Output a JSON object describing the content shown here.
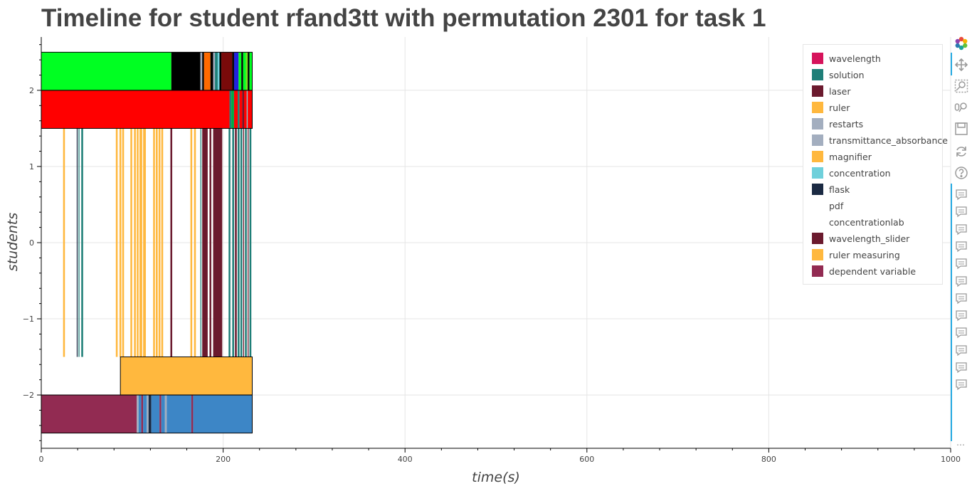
{
  "chart_data": {
    "type": "timeline",
    "title": "Timeline for student rfand3tt with permutation 2301 for task 1",
    "xlabel": "time(s)",
    "ylabel": "students",
    "xlim": [
      0,
      1000
    ],
    "ylim": [
      -2.7,
      2.7
    ],
    "x_ticks": [
      0,
      200,
      400,
      600,
      800,
      1000
    ],
    "x_tick_labels": [
      "0",
      "200",
      "400",
      "600",
      "800",
      "1000"
    ],
    "y_ticks": [
      -2,
      -1,
      0,
      1,
      2
    ],
    "y_tick_labels": [
      "−2",
      "−1",
      "0",
      "1",
      "2"
    ],
    "grid": true,
    "legend_position": "top-right",
    "legend": [
      {
        "label": "wavelength",
        "color": "#d6135b"
      },
      {
        "label": "solution",
        "color": "#1f7f78"
      },
      {
        "label": "laser",
        "color": "#6b1a2e"
      },
      {
        "label": "ruler",
        "color": "#ffb83e"
      },
      {
        "label": "restarts",
        "color": "#a3aebf"
      },
      {
        "label": "transmittance_absorbance",
        "color": "#a3aebf"
      },
      {
        "label": "magnifier",
        "color": "#ffb83e"
      },
      {
        "label": "concentration",
        "color": "#6fd0db"
      },
      {
        "label": "flask",
        "color": "#1b2a43"
      },
      {
        "label": "pdf",
        "color": "#ffffff"
      },
      {
        "label": "concentrationlab",
        "color": "#ffffff"
      },
      {
        "label": "wavelength_slider",
        "color": "#6b1a2e"
      },
      {
        "label": "ruler measuring",
        "color": "#ffb83e"
      },
      {
        "label": "dependent variable",
        "color": "#922b52"
      }
    ],
    "rows": [
      {
        "y_range": [
          2.0,
          2.5
        ],
        "segments": [
          {
            "start": 0,
            "end": 143,
            "color": "#00ff22"
          },
          {
            "start": 143,
            "end": 175,
            "color": "#000000"
          },
          {
            "start": 175,
            "end": 177,
            "color": "#a3aebf"
          },
          {
            "start": 177,
            "end": 179,
            "color": "#000000"
          },
          {
            "start": 179,
            "end": 186,
            "color": "#ff6a00"
          },
          {
            "start": 186,
            "end": 189,
            "color": "#000000"
          },
          {
            "start": 189,
            "end": 191,
            "color": "#a3aebf"
          },
          {
            "start": 191,
            "end": 194,
            "color": "#1f7f78"
          },
          {
            "start": 194,
            "end": 196,
            "color": "#6fd0db"
          },
          {
            "start": 196,
            "end": 198,
            "color": "#000000"
          },
          {
            "start": 198,
            "end": 210,
            "color": "#7a0a0a"
          },
          {
            "start": 210,
            "end": 212,
            "color": "#000000"
          },
          {
            "start": 212,
            "end": 217,
            "color": "#2222dd"
          },
          {
            "start": 217,
            "end": 220,
            "color": "#00ff22"
          },
          {
            "start": 220,
            "end": 222,
            "color": "#000000"
          },
          {
            "start": 222,
            "end": 225,
            "color": "#00ff22"
          },
          {
            "start": 225,
            "end": 227,
            "color": "#7ddc1f"
          },
          {
            "start": 227,
            "end": 229,
            "color": "#000000"
          },
          {
            "start": 229,
            "end": 232,
            "color": "#00ff22"
          }
        ]
      },
      {
        "y_range": [
          1.5,
          2.0
        ],
        "segments": [
          {
            "start": 0,
            "end": 207,
            "color": "#ff0000"
          },
          {
            "start": 207,
            "end": 209,
            "color": "#1f7f78"
          },
          {
            "start": 209,
            "end": 212,
            "color": "#00aa44"
          },
          {
            "start": 212,
            "end": 216,
            "color": "#ff0000"
          },
          {
            "start": 216,
            "end": 218,
            "color": "#1f7f78"
          },
          {
            "start": 218,
            "end": 221,
            "color": "#ff0000"
          },
          {
            "start": 221,
            "end": 223,
            "color": "#6b1a2e"
          },
          {
            "start": 223,
            "end": 226,
            "color": "#ff0000"
          },
          {
            "start": 226,
            "end": 227,
            "color": "#6fd0db"
          },
          {
            "start": 227,
            "end": 232,
            "color": "#ff0000"
          }
        ]
      },
      {
        "y_range": [
          -1.5,
          1.5
        ],
        "segments": [
          {
            "start": 24,
            "end": 26,
            "color": "#ffb83e"
          },
          {
            "start": 39,
            "end": 40,
            "color": "#1b2a43"
          },
          {
            "start": 41,
            "end": 42,
            "color": "#1f7f78"
          },
          {
            "start": 44,
            "end": 46,
            "color": "#1f7f78"
          },
          {
            "start": 82,
            "end": 84,
            "color": "#ffb83e"
          },
          {
            "start": 86,
            "end": 88,
            "color": "#ffb83e"
          },
          {
            "start": 89,
            "end": 91,
            "color": "#ffb83e"
          },
          {
            "start": 98,
            "end": 100,
            "color": "#ffb83e"
          },
          {
            "start": 102,
            "end": 104,
            "color": "#ffb83e"
          },
          {
            "start": 105,
            "end": 107,
            "color": "#ffb83e"
          },
          {
            "start": 108,
            "end": 111,
            "color": "#ffb83e"
          },
          {
            "start": 112,
            "end": 115,
            "color": "#ffb83e"
          },
          {
            "start": 123,
            "end": 125,
            "color": "#ffb83e"
          },
          {
            "start": 126,
            "end": 128,
            "color": "#ffb83e"
          },
          {
            "start": 129,
            "end": 131,
            "color": "#ffb83e"
          },
          {
            "start": 132,
            "end": 134,
            "color": "#ffb83e"
          },
          {
            "start": 142,
            "end": 144,
            "color": "#6b1a2e"
          },
          {
            "start": 164,
            "end": 166,
            "color": "#ffb83e"
          },
          {
            "start": 168,
            "end": 170,
            "color": "#ffb83e"
          },
          {
            "start": 175,
            "end": 176,
            "color": "#1f7f78"
          },
          {
            "start": 177,
            "end": 183,
            "color": "#6b1a2e"
          },
          {
            "start": 185,
            "end": 187,
            "color": "#6b1a2e"
          },
          {
            "start": 189,
            "end": 199,
            "color": "#6b1a2e"
          },
          {
            "start": 206,
            "end": 208,
            "color": "#1f7f78"
          },
          {
            "start": 210,
            "end": 212,
            "color": "#1f7f78"
          },
          {
            "start": 213,
            "end": 215,
            "color": "#6b1a2e"
          },
          {
            "start": 216,
            "end": 218,
            "color": "#1f7f78"
          },
          {
            "start": 219,
            "end": 221,
            "color": "#1f7f78"
          },
          {
            "start": 222,
            "end": 223,
            "color": "#6b1a2e"
          },
          {
            "start": 224,
            "end": 226,
            "color": "#1f7f78"
          },
          {
            "start": 227,
            "end": 228,
            "color": "#6b1a2e"
          },
          {
            "start": 229,
            "end": 231,
            "color": "#1f7f78"
          }
        ]
      },
      {
        "y_range": [
          -2.0,
          -1.5
        ],
        "segments": [
          {
            "start": 87,
            "end": 232,
            "color": "#ffb83e"
          }
        ]
      },
      {
        "y_range": [
          -2.5,
          -2.0
        ],
        "segments": [
          {
            "start": 0,
            "end": 105,
            "color": "#922b52"
          },
          {
            "start": 105,
            "end": 107,
            "color": "#a3aebf"
          },
          {
            "start": 107,
            "end": 110,
            "color": "#3d86c6"
          },
          {
            "start": 110,
            "end": 112,
            "color": "#922b52"
          },
          {
            "start": 112,
            "end": 116,
            "color": "#3d86c6"
          },
          {
            "start": 116,
            "end": 118,
            "color": "#a3aebf"
          },
          {
            "start": 118,
            "end": 121,
            "color": "#1b2a43"
          },
          {
            "start": 121,
            "end": 130,
            "color": "#3d86c6"
          },
          {
            "start": 130,
            "end": 132,
            "color": "#922b52"
          },
          {
            "start": 132,
            "end": 136,
            "color": "#3d86c6"
          },
          {
            "start": 136,
            "end": 138,
            "color": "#a3aebf"
          },
          {
            "start": 138,
            "end": 165,
            "color": "#3d86c6"
          },
          {
            "start": 165,
            "end": 167,
            "color": "#922b52"
          },
          {
            "start": 167,
            "end": 232,
            "color": "#3d86c6"
          }
        ]
      }
    ],
    "row_outlines": [
      {
        "start": 0,
        "end": 232,
        "y_range": [
          2.0,
          2.5
        ]
      },
      {
        "start": 0,
        "end": 232,
        "y_range": [
          1.5,
          2.0
        ]
      },
      {
        "start": 87,
        "end": 232,
        "y_range": [
          -2.0,
          -1.5
        ]
      },
      {
        "start": 0,
        "end": 232,
        "y_range": [
          -2.5,
          -2.0
        ]
      }
    ]
  },
  "toolbar": {
    "tools": [
      "bokeh-logo-icon",
      "pan-icon",
      "box-zoom-icon",
      "wheel-zoom-icon",
      "save-icon",
      "reset-icon",
      "help-icon"
    ],
    "hover_tool_count": 12,
    "more_label": "⋯"
  }
}
